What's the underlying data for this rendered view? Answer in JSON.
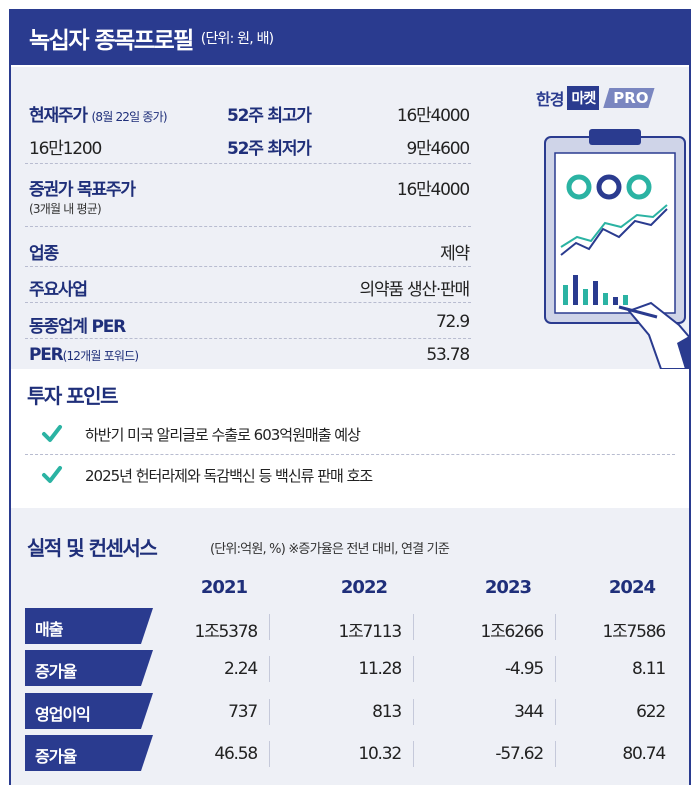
{
  "header": {
    "title": "녹십자 종목프로필",
    "unit": "(단위: 원, 배)"
  },
  "profile": {
    "current_price_label": "현재주가",
    "current_price_date": "(8월 22일 종가)",
    "current_price": "16만1200",
    "high52_label": "52주 최고가",
    "high52": "16만4000",
    "low52_label": "52주 최저가",
    "low52": "9만4600",
    "target_label": "증권가 목표주가",
    "target_sub": "(3개월 내 평균)",
    "target": "16만4000",
    "industry_label": "업종",
    "industry": "제약",
    "business_label": "주요사업",
    "business": "의약품 생산·판매",
    "peer_per_label": "동종업계 PER",
    "peer_per": "72.9",
    "per_label": "PER",
    "per_sub": "(12개월 포워드)",
    "per": "53.78"
  },
  "logo": {
    "part1": "한경",
    "part2": "마켓",
    "part3": "PRO"
  },
  "investment": {
    "title": "투자 포인트",
    "points": [
      "하반기 미국 알리글로 수출로 603억원매출 예상",
      "2025년 헌터라제와 독감백신 등 백신류 판매 호조"
    ]
  },
  "performance": {
    "title": "실적 및 컨센서스",
    "note": "(단위:억원, %)  ※증가율은 전년 대비, 연결 기준",
    "years": [
      "2021",
      "2022",
      "2023",
      "2024"
    ],
    "rows": [
      {
        "label": "매출",
        "values": [
          "1조5378",
          "1조7113",
          "1조6266",
          "1조7586"
        ]
      },
      {
        "label": "증가율",
        "values": [
          "2.24",
          "11.28",
          "-4.95",
          "8.11"
        ]
      },
      {
        "label": "영업이익",
        "values": [
          "737",
          "813",
          "344",
          "622"
        ]
      },
      {
        "label": "증가율",
        "values": [
          "46.58",
          "10.32",
          "-57.62",
          "80.74"
        ]
      }
    ]
  },
  "colors": {
    "navy": "#2a3b8f",
    "teal": "#2bb3a3",
    "panel": "#eef0f6"
  }
}
